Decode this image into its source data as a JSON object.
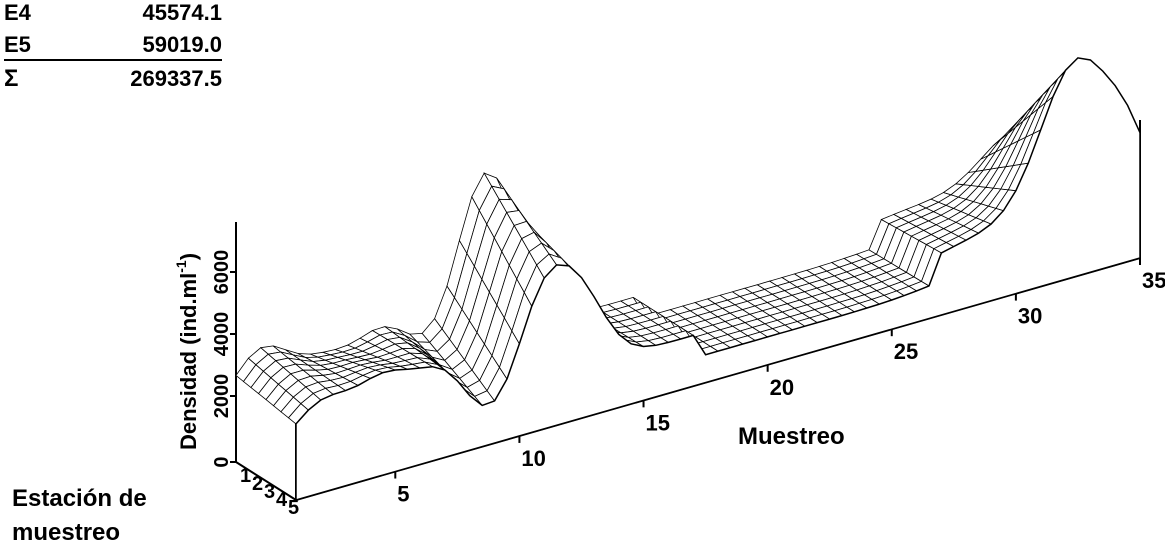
{
  "summary_table": {
    "rows": [
      {
        "label": "E4",
        "value": "45574.1"
      },
      {
        "label": "E5",
        "value": "59019.0"
      }
    ],
    "total": {
      "label": "Σ",
      "value": "269337.5"
    }
  },
  "chart_data": {
    "type": "surface3d",
    "title": "",
    "xlabel": "Muestreo",
    "ylabel": "Densidad (ind.ml-1)",
    "ylabel_main": "Densidad (ind.ml",
    "ylabel_sup": "-1",
    "ylabel_close": ")",
    "zlabel_line1": "Estación de",
    "zlabel_line2": "muestreo",
    "muestreo_range": [
      1,
      35
    ],
    "x_ticks": [
      "5",
      "10",
      "15",
      "20",
      "25",
      "30",
      "35"
    ],
    "stations": [
      "1",
      "2",
      "3",
      "4",
      "5"
    ],
    "y_ticks": [
      "0",
      "2000",
      "4000",
      "6000"
    ],
    "ylim": [
      0,
      6000
    ],
    "colors": {
      "line": "#000000",
      "fill": "#ffffff"
    }
  }
}
